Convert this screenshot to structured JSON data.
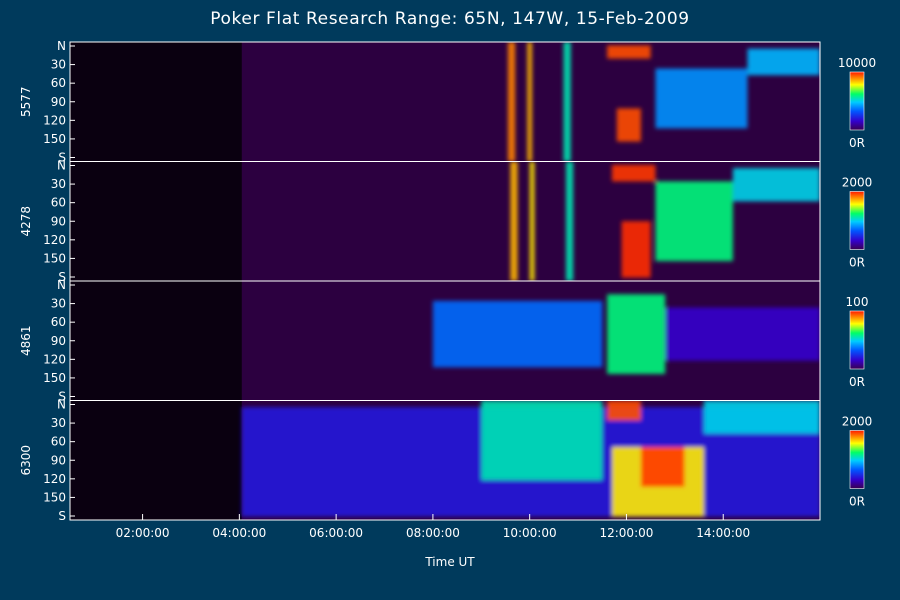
{
  "title": "Poker Flat Research Range: 65N, 147W, 15-Feb-2009",
  "colors": {
    "background": "#003a5c",
    "data_start_color": "#000000"
  },
  "chart_data": {
    "type": "heatmap",
    "title": "Poker Flat Research Range: 65N, 147W, 15-Feb-2009",
    "xlabel": "Time UT",
    "x_ticks": [
      "02:00:00",
      "04:00:00",
      "06:00:00",
      "08:00:00",
      "10:00:00",
      "12:00:00",
      "14:00:00"
    ],
    "x_range_hours": [
      0.5,
      16.0
    ],
    "data_start_hour": 4.05,
    "y_tick_labels": [
      "N",
      "30",
      "60",
      "90",
      "120",
      "150",
      "S"
    ],
    "y_range_deg": [
      0,
      180
    ],
    "colorbar_unit_label": "0R",
    "panels": [
      {
        "name": "5577",
        "colorbar_max": "10000",
        "arcs": [
          {
            "t0": 9.55,
            "t1": 9.7,
            "el0": 0,
            "el1": 180,
            "level": 0.9
          },
          {
            "t0": 9.95,
            "t1": 10.05,
            "el0": 0,
            "el1": 180,
            "level": 0.85
          },
          {
            "t0": 10.7,
            "t1": 10.85,
            "el0": 0,
            "el1": 180,
            "level": 0.55
          },
          {
            "t0": 11.6,
            "t1": 12.5,
            "el0": 5,
            "el1": 25,
            "level": 0.95
          },
          {
            "t0": 11.8,
            "t1": 12.3,
            "el0": 100,
            "el1": 150,
            "level": 0.95
          },
          {
            "t0": 12.6,
            "t1": 14.5,
            "el0": 40,
            "el1": 130,
            "level": 0.4
          },
          {
            "t0": 14.5,
            "t1": 16.0,
            "el0": 10,
            "el1": 50,
            "level": 0.45
          }
        ]
      },
      {
        "name": "4278",
        "colorbar_max": "2000",
        "arcs": [
          {
            "t0": 9.6,
            "t1": 9.75,
            "el0": 0,
            "el1": 180,
            "level": 0.85
          },
          {
            "t0": 10.0,
            "t1": 10.1,
            "el0": 0,
            "el1": 180,
            "level": 0.8
          },
          {
            "t0": 10.75,
            "t1": 10.9,
            "el0": 0,
            "el1": 180,
            "level": 0.55
          },
          {
            "t0": 11.7,
            "t1": 12.6,
            "el0": 5,
            "el1": 30,
            "level": 0.97
          },
          {
            "t0": 11.9,
            "t1": 12.5,
            "el0": 90,
            "el1": 175,
            "level": 0.98
          },
          {
            "t0": 12.6,
            "t1": 14.2,
            "el0": 30,
            "el1": 150,
            "level": 0.6
          },
          {
            "t0": 14.2,
            "t1": 16.0,
            "el0": 10,
            "el1": 60,
            "level": 0.5
          }
        ]
      },
      {
        "name": "4861",
        "colorbar_max": "100",
        "arcs": [
          {
            "t0": 8.0,
            "t1": 11.5,
            "el0": 30,
            "el1": 130,
            "level": 0.35
          },
          {
            "t0": 11.6,
            "t1": 12.8,
            "el0": 20,
            "el1": 140,
            "level": 0.6
          },
          {
            "t0": 12.8,
            "t1": 16.0,
            "el0": 40,
            "el1": 120,
            "level": 0.15
          }
        ]
      },
      {
        "name": "6300",
        "colorbar_max": "2000",
        "arcs": [
          {
            "t0": 4.05,
            "t1": 16.0,
            "el0": 10,
            "el1": 175,
            "level": 0.2
          },
          {
            "t0": 9.0,
            "t1": 11.5,
            "el0": 0,
            "el1": 120,
            "level": 0.55
          },
          {
            "t0": 11.6,
            "t1": 12.3,
            "el0": 0,
            "el1": 30,
            "level": 0.95
          },
          {
            "t0": 11.7,
            "t1": 13.6,
            "el0": 70,
            "el1": 175,
            "level": 0.8
          },
          {
            "t0": 12.3,
            "t1": 13.2,
            "el0": 70,
            "el1": 130,
            "level": 0.97
          },
          {
            "t0": 13.6,
            "t1": 16.0,
            "el0": 0,
            "el1": 50,
            "level": 0.5
          }
        ]
      }
    ]
  }
}
